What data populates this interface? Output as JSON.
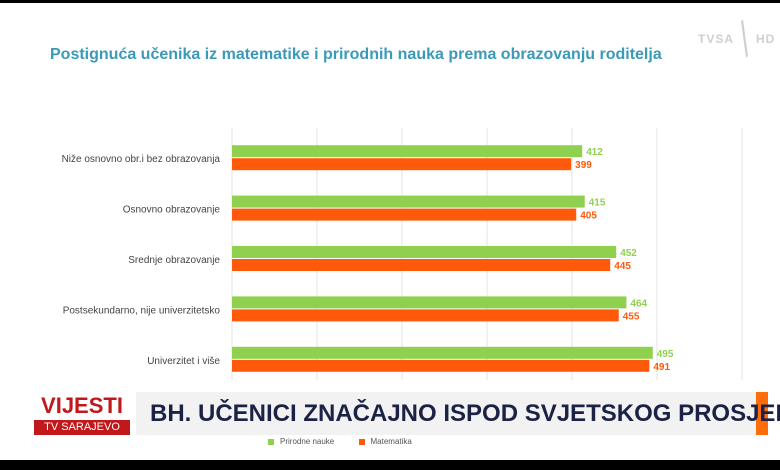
{
  "title": "Postignuća učenika iz matematike i prirodnih nauka prema obrazovanju roditelja",
  "logo": {
    "tvsa": "TVSA",
    "hd": "HD"
  },
  "banner": {
    "program": "VIJESTI",
    "station": "TV SARAJEVO",
    "headline": "BH. UČENICI ZNAČAJNO ISPOD SVJETSKOG PROSJEKA"
  },
  "colors": {
    "series1": "#8fd14f",
    "series2": "#ff5a0c",
    "title": "#3a9ab8",
    "banner_red": "#c2181b",
    "banner_orange": "#ff6d0a"
  },
  "chart_data": {
    "type": "bar",
    "orientation": "horizontal",
    "title": "Postignuća učenika iz matematike i prirodnih nauka prema obrazovanju roditelja",
    "categories": [
      "Niže osnovno obr.i bez obrazovanja",
      "Osnovno obrazovanje",
      "Srednje obrazovanje",
      "Postsekundarno, nije univerzitetsko",
      "Univerzitet i više"
    ],
    "series": [
      {
        "name": "Prirodne nauke",
        "color": "#8fd14f",
        "values": [
          412,
          415,
          452,
          464,
          495
        ]
      },
      {
        "name": "Matematika",
        "color": "#ff5a0c",
        "values": [
          399,
          405,
          445,
          455,
          491
        ]
      }
    ],
    "xlim": [
      0,
      600
    ],
    "grid": true,
    "legend": "bottom"
  }
}
